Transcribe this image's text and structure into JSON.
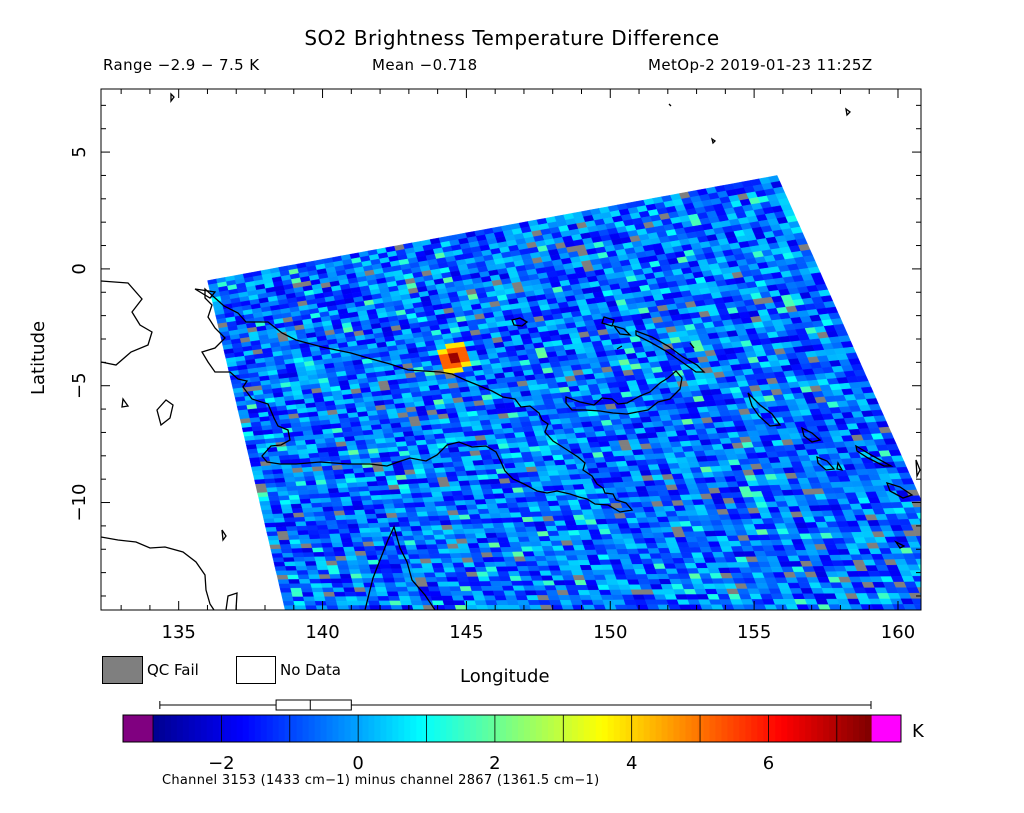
{
  "colors": {
    "qc_fail": "#7f7f7f",
    "no_data": "#ffffff",
    "below_range": "#800080",
    "above_range": "#ff00ff",
    "coastline": "#000000",
    "colormap": [
      "#00008f",
      "#0000ff",
      "#007fff",
      "#00ffff",
      "#7fff7f",
      "#ffff00",
      "#ff7f00",
      "#ff0000",
      "#7f0000"
    ]
  },
  "chart_data": {
    "type": "heatmap",
    "title": "SO2 Brightness Temperature Difference",
    "range_label": "Range −2.9 − 7.5 K",
    "mean_label": "Mean −0.718",
    "satellite_label": "MetOp-2 2019-01-23 11:25Z",
    "xlabel": "Longitude",
    "ylabel": "Latitude",
    "xlim": [
      132.3,
      160.8
    ],
    "ylim": [
      -14.6,
      7.7
    ],
    "x_ticks": [
      135,
      140,
      145,
      150,
      155,
      160
    ],
    "y_ticks": [
      5,
      0,
      -5,
      -10
    ],
    "x_tick_labels": [
      "135",
      "140",
      "145",
      "150",
      "155",
      "160"
    ],
    "y_tick_labels": [
      "5",
      "0",
      "−5",
      "−10"
    ],
    "swath_corners_lonlat": [
      [
        136.0,
        -0.5
      ],
      [
        155.8,
        4.0
      ],
      [
        162.5,
        -14.6
      ],
      [
        138.7,
        -14.6
      ]
    ],
    "hotspot": {
      "lon": 144.6,
      "lat": -3.8,
      "value": 7.5
    },
    "background_value": -0.7,
    "legend": {
      "qc_fail": "QC Fail",
      "no_data": "No Data"
    },
    "colorbar": {
      "unit": "K",
      "vmin": -3.0,
      "vmax": 7.5,
      "ticks": [
        -2,
        0,
        2,
        4,
        6
      ],
      "tick_labels": [
        "−2",
        "0",
        "2",
        "4",
        "6"
      ]
    },
    "box_whisker": {
      "min": -2.9,
      "q1": -1.2,
      "median": -0.7,
      "q3": -0.1,
      "max": 7.5
    },
    "footnote": "Channel 3153 (1433 cm−1) minus channel 2867 (1361.5 cm−1)"
  }
}
